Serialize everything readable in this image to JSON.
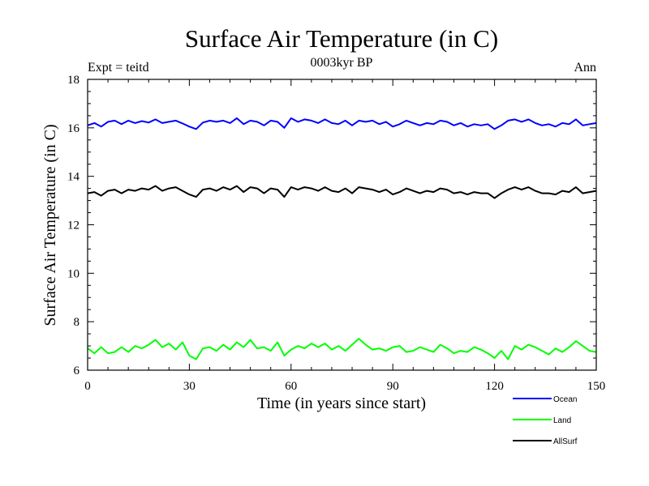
{
  "chart_data": {
    "type": "line",
    "title": "Surface Air Temperature (in C)",
    "subtitle": "0003kyr BP",
    "left_label": "Expt = teitd",
    "right_label": "Ann",
    "xlabel": "Time (in years since start)",
    "ylabel": "Surface Air Temperature (in C)",
    "xlim": [
      0,
      150
    ],
    "ylim": [
      6,
      18
    ],
    "x_ticks": [
      "0",
      "30",
      "60",
      "90",
      "120",
      "150"
    ],
    "y_ticks": [
      "6",
      "8",
      "10",
      "12",
      "14",
      "16",
      "18"
    ],
    "grid": false,
    "legend_position": "bottom-right",
    "series": [
      {
        "name": "Ocean",
        "color": "#0000ff",
        "x": [
          0,
          2,
          4,
          6,
          8,
          10,
          12,
          14,
          16,
          18,
          20,
          22,
          24,
          26,
          28,
          30,
          32,
          34,
          36,
          38,
          40,
          42,
          44,
          46,
          48,
          50,
          52,
          54,
          56,
          58,
          60,
          62,
          64,
          66,
          68,
          70,
          72,
          74,
          76,
          78,
          80,
          82,
          84,
          86,
          88,
          90,
          92,
          94,
          96,
          98,
          100,
          102,
          104,
          106,
          108,
          110,
          112,
          114,
          116,
          118,
          120,
          122,
          124,
          126,
          128,
          130,
          132,
          134,
          136,
          138,
          140,
          142,
          144,
          146,
          148,
          150
        ],
        "values": [
          16.1,
          16.2,
          16.05,
          16.25,
          16.3,
          16.15,
          16.3,
          16.2,
          16.28,
          16.22,
          16.35,
          16.2,
          16.25,
          16.3,
          16.18,
          16.05,
          15.95,
          16.22,
          16.3,
          16.25,
          16.3,
          16.2,
          16.4,
          16.15,
          16.3,
          16.25,
          16.1,
          16.3,
          16.25,
          16.0,
          16.4,
          16.25,
          16.35,
          16.3,
          16.2,
          16.35,
          16.2,
          16.15,
          16.3,
          16.1,
          16.3,
          16.25,
          16.3,
          16.15,
          16.25,
          16.05,
          16.15,
          16.3,
          16.2,
          16.1,
          16.2,
          16.15,
          16.3,
          16.25,
          16.1,
          16.2,
          16.05,
          16.15,
          16.1,
          16.15,
          15.95,
          16.1,
          16.3,
          16.35,
          16.25,
          16.35,
          16.2,
          16.1,
          16.15,
          16.05,
          16.2,
          16.15,
          16.35,
          16.1,
          16.15,
          16.2
        ]
      },
      {
        "name": "Land",
        "color": "#00ff00",
        "x": [
          0,
          2,
          4,
          6,
          8,
          10,
          12,
          14,
          16,
          18,
          20,
          22,
          24,
          26,
          28,
          30,
          32,
          34,
          36,
          38,
          40,
          42,
          44,
          46,
          48,
          50,
          52,
          54,
          56,
          58,
          60,
          62,
          64,
          66,
          68,
          70,
          72,
          74,
          76,
          78,
          80,
          82,
          84,
          86,
          88,
          90,
          92,
          94,
          96,
          98,
          100,
          102,
          104,
          106,
          108,
          110,
          112,
          114,
          116,
          118,
          120,
          122,
          124,
          126,
          128,
          130,
          132,
          134,
          136,
          138,
          140,
          142,
          144,
          146,
          148,
          150
        ],
        "values": [
          6.9,
          6.7,
          6.95,
          6.7,
          6.75,
          6.95,
          6.75,
          7.0,
          6.9,
          7.05,
          7.25,
          6.95,
          7.1,
          6.85,
          7.15,
          6.6,
          6.45,
          6.9,
          6.95,
          6.8,
          7.05,
          6.85,
          7.15,
          6.95,
          7.25,
          6.9,
          6.95,
          6.8,
          7.15,
          6.6,
          6.85,
          7.0,
          6.9,
          7.1,
          6.95,
          7.1,
          6.85,
          7.0,
          6.8,
          7.05,
          7.3,
          7.05,
          6.85,
          6.9,
          6.8,
          6.95,
          7.0,
          6.75,
          6.8,
          6.95,
          6.85,
          6.75,
          7.05,
          6.9,
          6.7,
          6.8,
          6.75,
          6.95,
          6.85,
          6.7,
          6.5,
          6.8,
          6.45,
          7.0,
          6.85,
          7.05,
          6.95,
          6.8,
          6.65,
          6.9,
          6.75,
          6.95,
          7.2,
          7.0,
          6.8,
          6.75
        ]
      },
      {
        "name": "AllSurf",
        "color": "#000000",
        "x": [
          0,
          2,
          4,
          6,
          8,
          10,
          12,
          14,
          16,
          18,
          20,
          22,
          24,
          26,
          28,
          30,
          32,
          34,
          36,
          38,
          40,
          42,
          44,
          46,
          48,
          50,
          52,
          54,
          56,
          58,
          60,
          62,
          64,
          66,
          68,
          70,
          72,
          74,
          76,
          78,
          80,
          82,
          84,
          86,
          88,
          90,
          92,
          94,
          96,
          98,
          100,
          102,
          104,
          106,
          108,
          110,
          112,
          114,
          116,
          118,
          120,
          122,
          124,
          126,
          128,
          130,
          132,
          134,
          136,
          138,
          140,
          142,
          144,
          146,
          148,
          150
        ],
        "values": [
          13.3,
          13.35,
          13.2,
          13.4,
          13.45,
          13.3,
          13.45,
          13.4,
          13.5,
          13.45,
          13.6,
          13.4,
          13.5,
          13.55,
          13.4,
          13.25,
          13.15,
          13.45,
          13.5,
          13.4,
          13.55,
          13.45,
          13.6,
          13.35,
          13.55,
          13.5,
          13.3,
          13.5,
          13.45,
          13.15,
          13.55,
          13.45,
          13.55,
          13.5,
          13.4,
          13.55,
          13.4,
          13.35,
          13.5,
          13.3,
          13.55,
          13.5,
          13.45,
          13.35,
          13.45,
          13.25,
          13.35,
          13.5,
          13.4,
          13.3,
          13.4,
          13.35,
          13.5,
          13.45,
          13.3,
          13.35,
          13.25,
          13.35,
          13.3,
          13.3,
          13.1,
          13.3,
          13.45,
          13.55,
          13.45,
          13.55,
          13.4,
          13.3,
          13.3,
          13.25,
          13.4,
          13.35,
          13.55,
          13.3,
          13.35,
          13.4
        ]
      }
    ]
  }
}
